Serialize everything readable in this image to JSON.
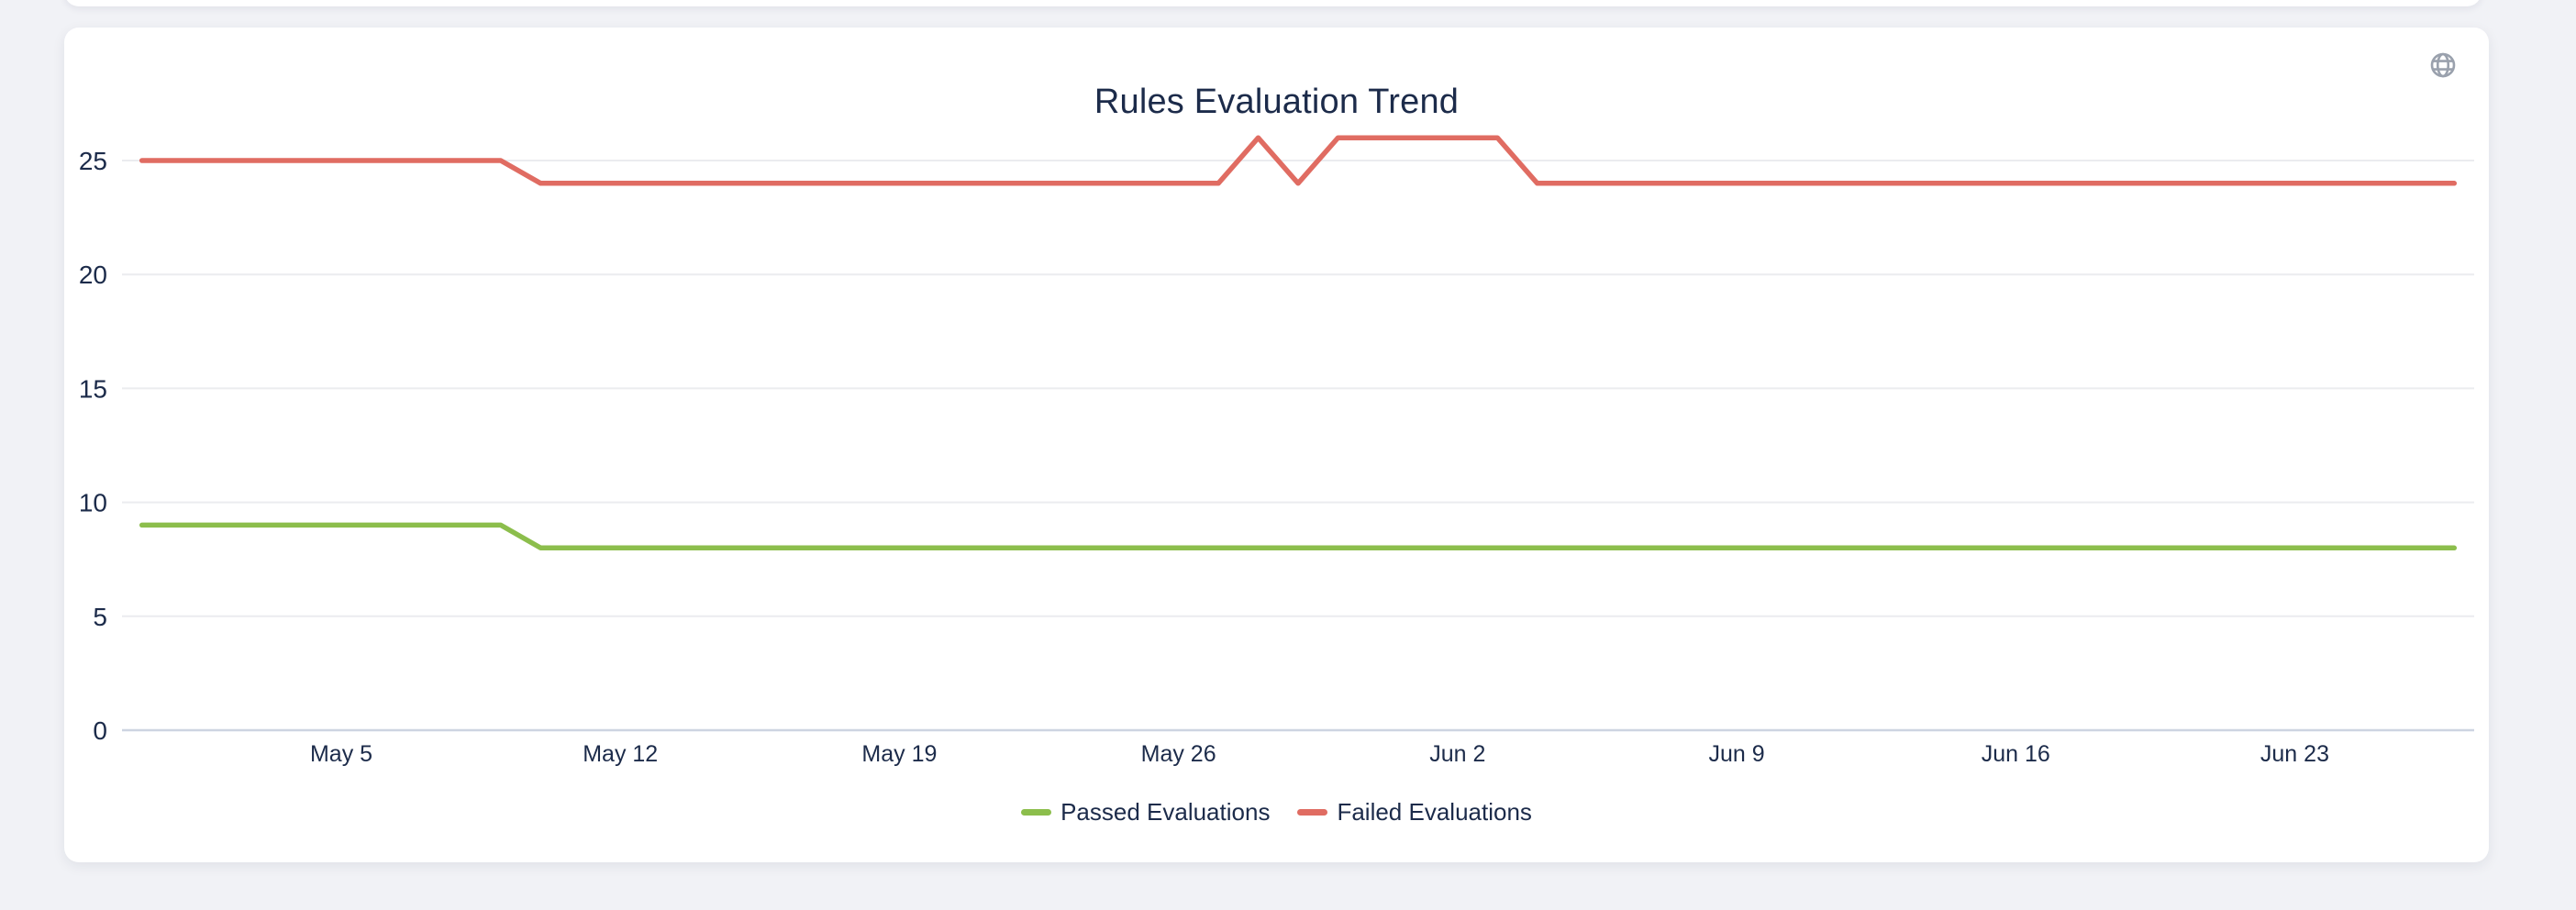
{
  "page": {
    "background": "#f1f2f6"
  },
  "card": {
    "title": "Rules Evaluation Trend"
  },
  "icons": {
    "globe": {
      "label": "globe-icon",
      "color": "#9aa1ad"
    }
  },
  "colors": {
    "text": "#1c2b4a",
    "gridline": "#ebecef",
    "zero_axis": "#cdd4e1",
    "passed": "#8cbe4c",
    "failed": "#e06c62",
    "card_background": "#ffffff",
    "page_background": "#f1f2f6"
  },
  "chart_data": {
    "type": "line",
    "title": "Rules Evaluation Trend",
    "xlabel": "",
    "ylabel": "",
    "ylim": [
      0,
      26.4
    ],
    "y_ticks": [
      0,
      5,
      10,
      15,
      20,
      25
    ],
    "grid": true,
    "legend_position": "bottom",
    "x": [
      "Apr 30",
      "May 1",
      "May 2",
      "May 3",
      "May 4",
      "May 5",
      "May 6",
      "May 7",
      "May 8",
      "May 9",
      "May 10",
      "May 11",
      "May 12",
      "May 13",
      "May 14",
      "May 15",
      "May 16",
      "May 17",
      "May 18",
      "May 19",
      "May 20",
      "May 21",
      "May 22",
      "May 23",
      "May 24",
      "May 25",
      "May 26",
      "May 27",
      "May 28",
      "May 29",
      "May 30",
      "May 31",
      "Jun 1",
      "Jun 2",
      "Jun 3",
      "Jun 4",
      "Jun 5",
      "Jun 6",
      "Jun 7",
      "Jun 8",
      "Jun 9",
      "Jun 10",
      "Jun 11",
      "Jun 12",
      "Jun 13",
      "Jun 14",
      "Jun 15",
      "Jun 16",
      "Jun 17",
      "Jun 18",
      "Jun 19",
      "Jun 20",
      "Jun 21",
      "Jun 22",
      "Jun 23",
      "Jun 24",
      "Jun 25",
      "Jun 26",
      "Jun 27"
    ],
    "x_tick_indices": [
      5,
      12,
      19,
      26,
      33,
      40,
      47,
      54
    ],
    "x_tick_labels": [
      "May 5",
      "May 12",
      "May 19",
      "May 26",
      "Jun 2",
      "Jun 9",
      "Jun 16",
      "Jun 23"
    ],
    "series": [
      {
        "name": "Passed Evaluations",
        "color": "#8cbe4c",
        "values": [
          9,
          9,
          9,
          9,
          9,
          9,
          9,
          9,
          9,
          9,
          8,
          8,
          8,
          8,
          8,
          8,
          8,
          8,
          8,
          8,
          8,
          8,
          8,
          8,
          8,
          8,
          8,
          8,
          8,
          8,
          8,
          8,
          8,
          8,
          8,
          8,
          8,
          8,
          8,
          8,
          8,
          8,
          8,
          8,
          8,
          8,
          8,
          8,
          8,
          8,
          8,
          8,
          8,
          8,
          8,
          8,
          8,
          8,
          8
        ]
      },
      {
        "name": "Failed Evaluations",
        "color": "#e06c62",
        "values": [
          25,
          25,
          25,
          25,
          25,
          25,
          25,
          25,
          25,
          25,
          24,
          24,
          24,
          24,
          24,
          24,
          24,
          24,
          24,
          24,
          24,
          24,
          24,
          24,
          24,
          24,
          24,
          24,
          26,
          24,
          26,
          26,
          26,
          26,
          26,
          24,
          24,
          24,
          24,
          24,
          24,
          24,
          24,
          24,
          24,
          24,
          24,
          24,
          24,
          24,
          24,
          24,
          24,
          24,
          24,
          24,
          24,
          24,
          24
        ]
      }
    ]
  }
}
